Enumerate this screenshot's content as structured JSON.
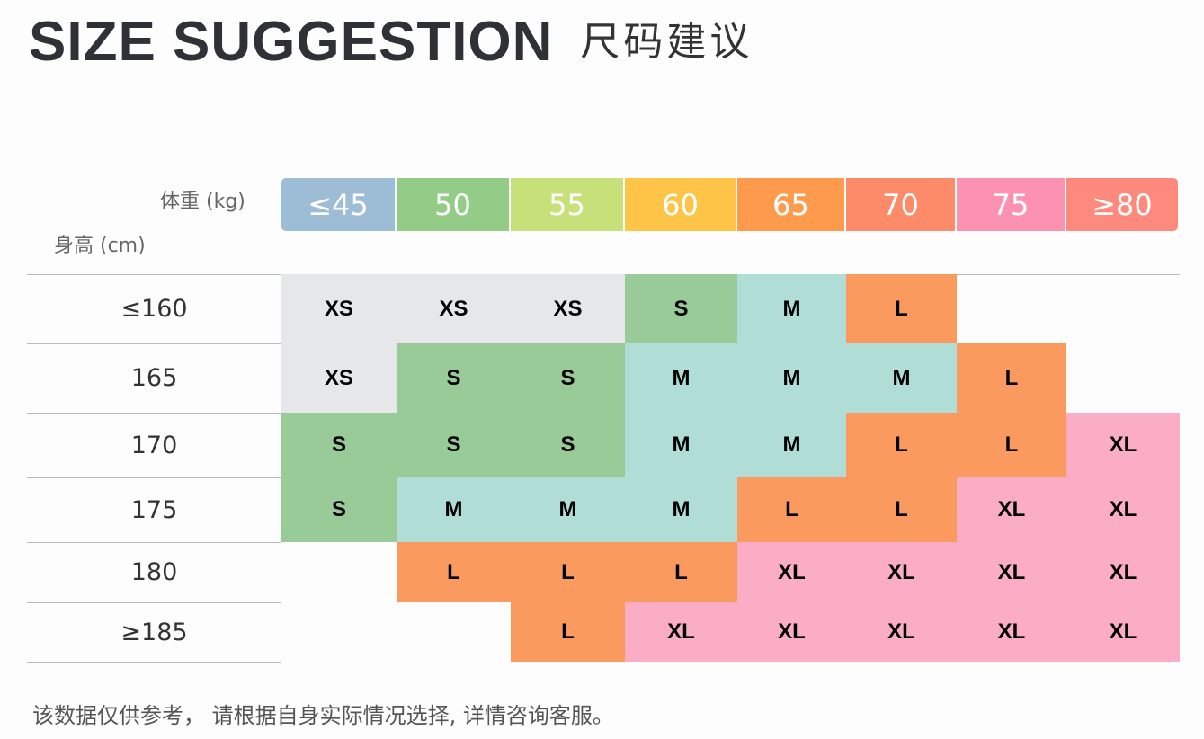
{
  "title": {
    "en": "SIZE SUGGESTION",
    "cn": "尺码建议"
  },
  "weight_label": "体重 (kg)",
  "height_label": "身高 (cm)",
  "weights": [
    {
      "label": "≤45",
      "color": "#9dbcd6"
    },
    {
      "label": "50",
      "color": "#93cc87"
    },
    {
      "label": "55",
      "color": "#c7e07a"
    },
    {
      "label": "60",
      "color": "#fdc448"
    },
    {
      "label": "65",
      "color": "#fd9a4c"
    },
    {
      "label": "70",
      "color": "#fd8a68"
    },
    {
      "label": "75",
      "color": "#fd91b2"
    },
    {
      "label": "≥80",
      "color": "#fd8a7c"
    }
  ],
  "size_colors": {
    "XS": "#e6e7e9",
    "S": "#98cb98",
    "M": "#b0ddd6",
    "L": "#fa9a5e",
    "XL": "#fbadc6"
  },
  "rows": [
    {
      "height": "≤160",
      "sizes": [
        "XS",
        "XS",
        "XS",
        "S",
        "M",
        "L",
        "",
        ""
      ]
    },
    {
      "height": "165",
      "sizes": [
        "XS",
        "S",
        "S",
        "M",
        "M",
        "M",
        "L",
        ""
      ]
    },
    {
      "height": "170",
      "sizes": [
        "S",
        "S",
        "S",
        "M",
        "M",
        "L",
        "L",
        "XL"
      ]
    },
    {
      "height": "175",
      "sizes": [
        "S",
        "M",
        "M",
        "M",
        "L",
        "L",
        "XL",
        "XL"
      ]
    },
    {
      "height": "180",
      "sizes": [
        "",
        "L",
        "L",
        "L",
        "XL",
        "XL",
        "XL",
        "XL"
      ]
    },
    {
      "height": "≥185",
      "sizes": [
        "",
        "",
        "L",
        "XL",
        "XL",
        "XL",
        "XL",
        "XL"
      ]
    }
  ],
  "footer": "该数据仅供参考， 请根据自身实际情况选择, 详情咨询客服。"
}
